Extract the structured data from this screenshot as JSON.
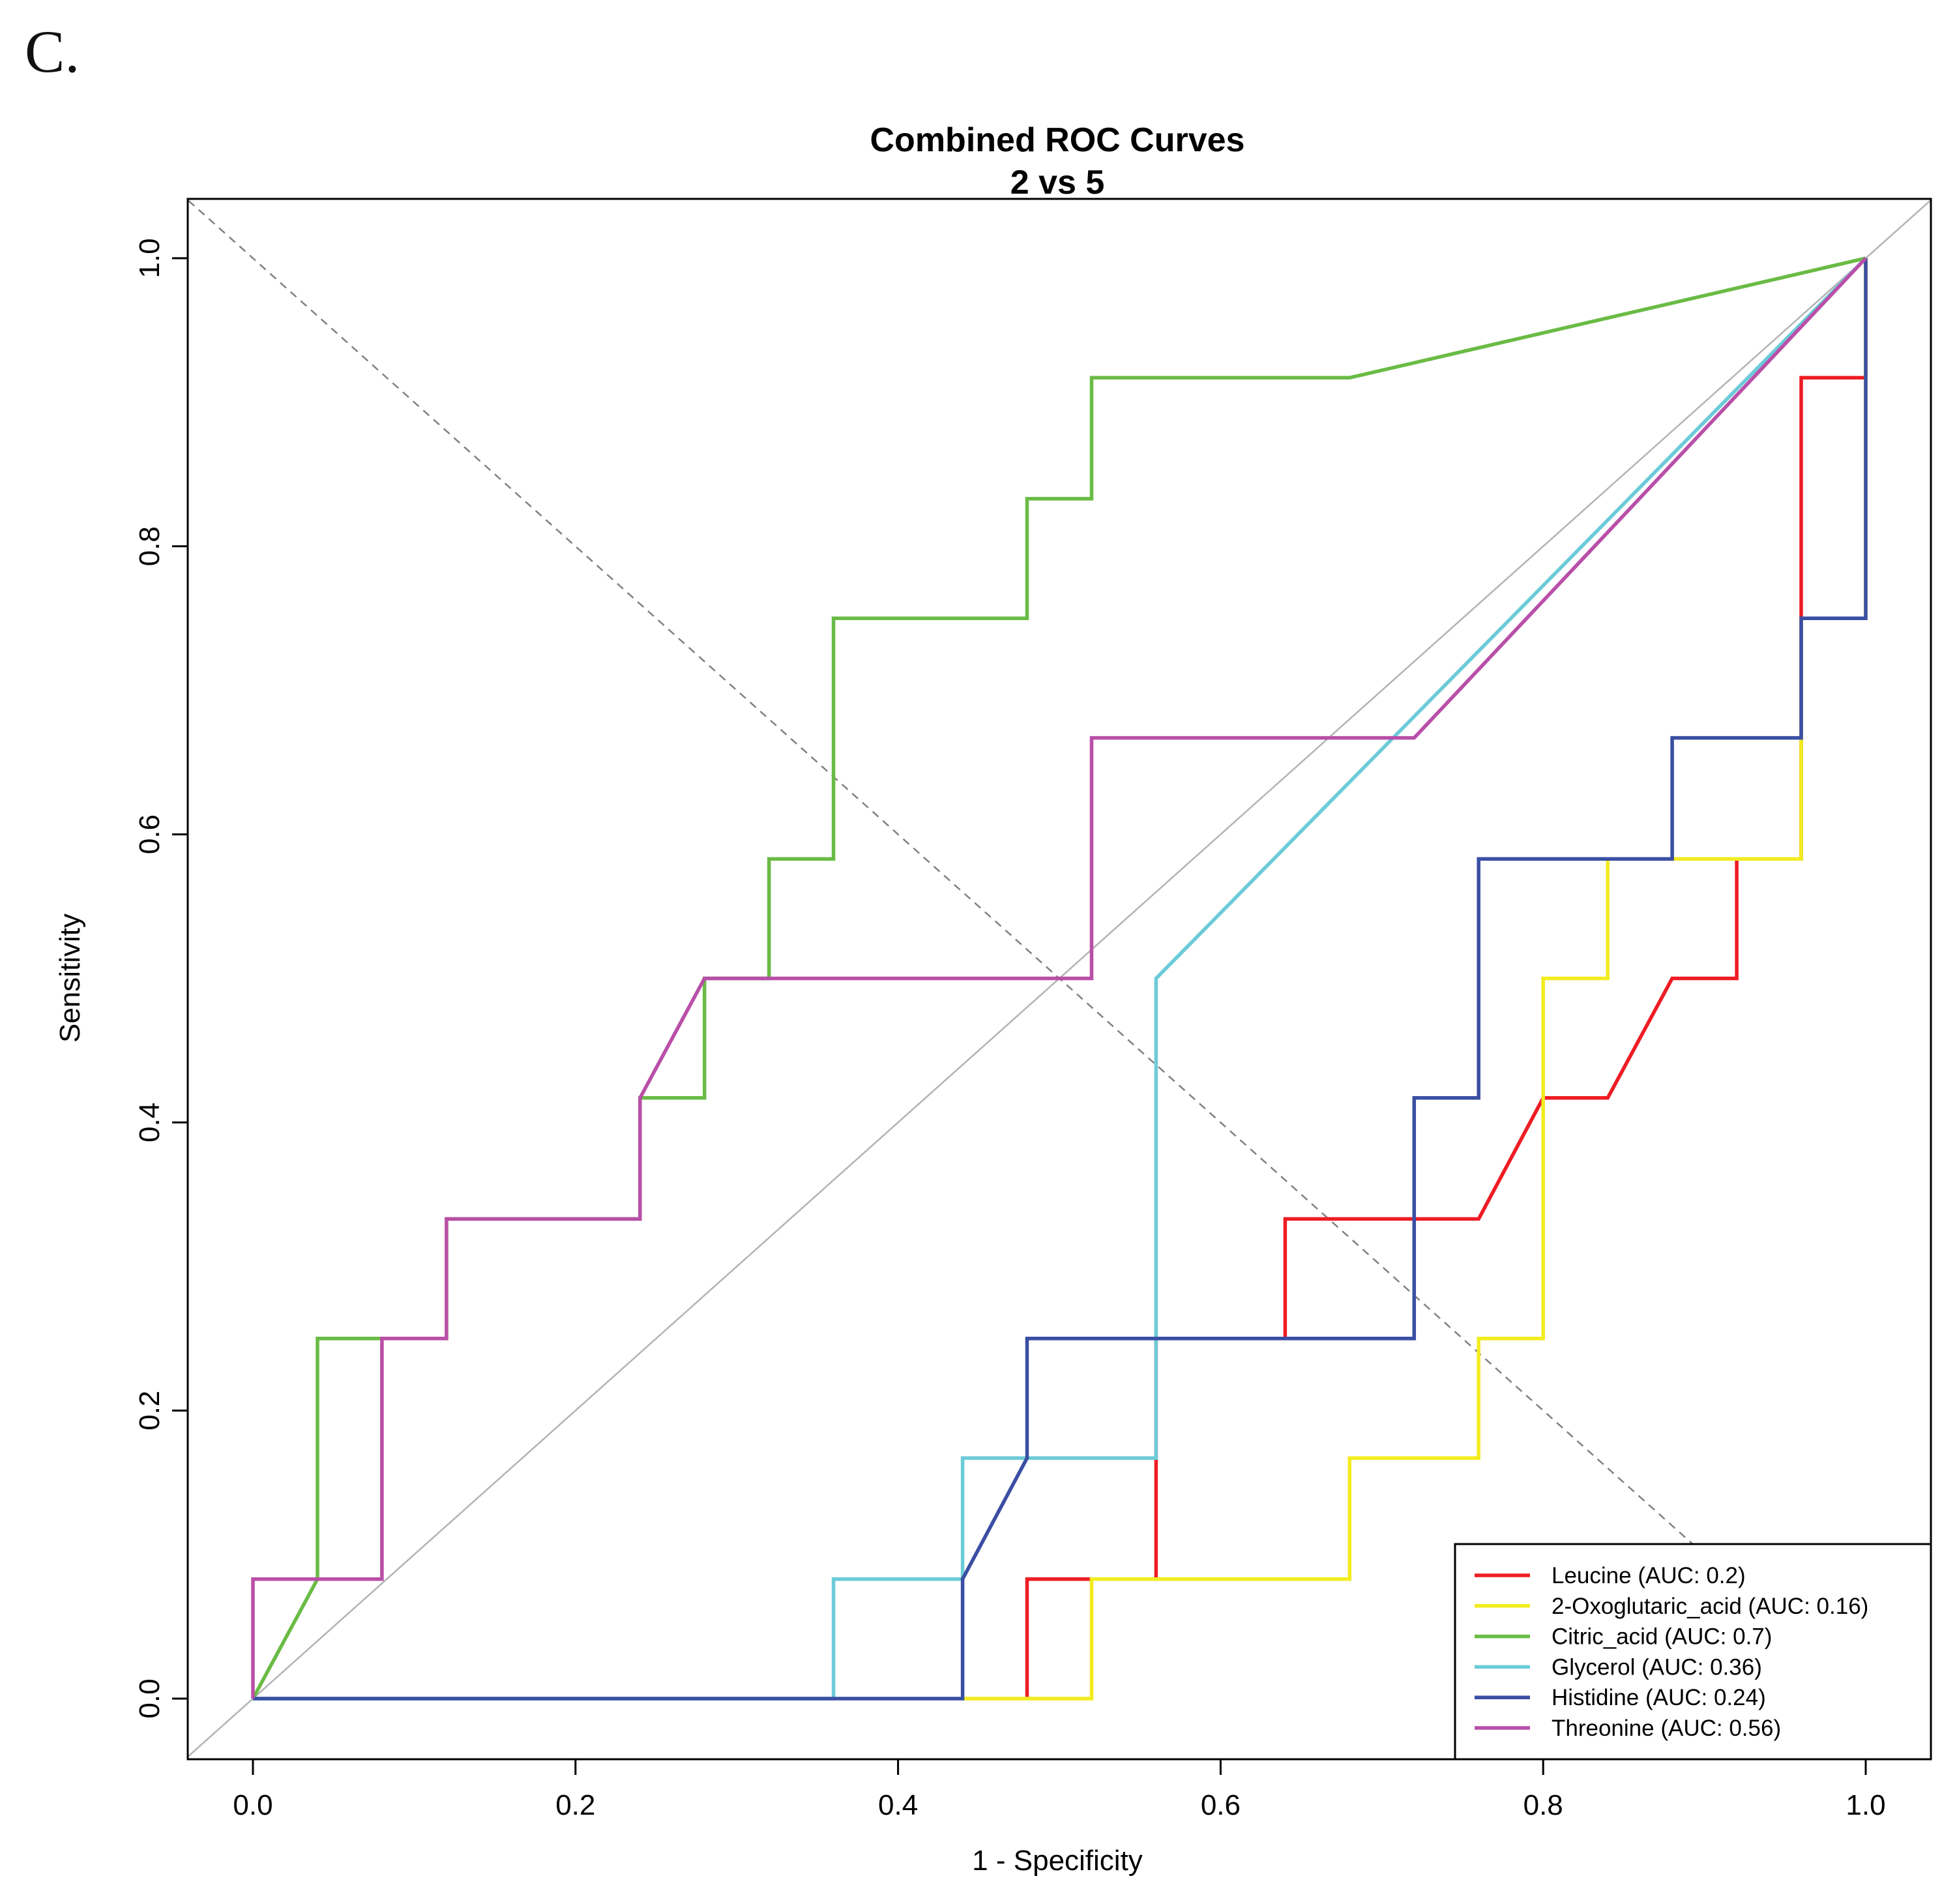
{
  "panel_label": "C.",
  "chart_data": {
    "type": "line",
    "title": "Combined ROC Curves",
    "subtitle": "2 vs 5",
    "xlabel": "1 - Specificity",
    "ylabel": "Sensitivity",
    "xlim": [
      -0.04,
      1.04
    ],
    "ylim": [
      -0.04,
      1.04
    ],
    "x_ticks": [
      0.0,
      0.2,
      0.4,
      0.6,
      0.8,
      1.0
    ],
    "x_tick_labels": [
      "0.0",
      "0.2",
      "0.4",
      "0.6",
      "0.8",
      "1.0"
    ],
    "y_ticks": [
      0.0,
      0.2,
      0.4,
      0.6,
      0.8,
      1.0
    ],
    "y_tick_labels": [
      "0.0",
      "0.2",
      "0.4",
      "0.6",
      "0.8",
      "1.0"
    ],
    "grid": false,
    "legend_position": "bottom-right",
    "reference_lines": [
      {
        "style": "solid",
        "color": "#b3b3b3",
        "from": [
          -0.04,
          -0.04
        ],
        "to": [
          1.04,
          1.04
        ]
      },
      {
        "style": "dashed",
        "color": "#808080",
        "from": [
          -0.04,
          1.04
        ],
        "to": [
          1.04,
          -0.04
        ]
      }
    ],
    "series": [
      {
        "name": "Leucine (AUC: 0.2)",
        "color": "#ee1c24",
        "points": [
          [
            0.48,
            0
          ],
          [
            0.48,
            0.083
          ],
          [
            0.56,
            0.083
          ],
          [
            0.56,
            0.167
          ],
          [
            0.56,
            0.25
          ],
          [
            0.64,
            0.25
          ],
          [
            0.64,
            0.333
          ],
          [
            0.76,
            0.333
          ],
          [
            0.8,
            0.417
          ],
          [
            0.84,
            0.417
          ],
          [
            0.88,
            0.5
          ],
          [
            0.92,
            0.5
          ],
          [
            0.92,
            0.583
          ],
          [
            0.96,
            0.583
          ],
          [
            0.96,
            0.75
          ],
          [
            0.96,
            0.917
          ],
          [
            1.0,
            0.917
          ],
          [
            1.0,
            1.0
          ]
        ]
      },
      {
        "name": "2-Oxoglutaric_acid (AUC: 0.16)",
        "color": "#f2ec1f",
        "points": [
          [
            0.44,
            0
          ],
          [
            0.52,
            0
          ],
          [
            0.52,
            0.083
          ],
          [
            0.68,
            0.083
          ],
          [
            0.68,
            0.167
          ],
          [
            0.76,
            0.167
          ],
          [
            0.76,
            0.25
          ],
          [
            0.8,
            0.25
          ],
          [
            0.8,
            0.417
          ],
          [
            0.8,
            0.5
          ],
          [
            0.84,
            0.5
          ],
          [
            0.84,
            0.583
          ],
          [
            0.88,
            0.583
          ],
          [
            0.96,
            0.583
          ],
          [
            0.96,
            0.667
          ],
          [
            0.96,
            0.75
          ],
          [
            1.0,
            0.75
          ],
          [
            1.0,
            1.0
          ]
        ]
      },
      {
        "name": "Citric_acid (AUC: 0.7)",
        "color": "#6abb45",
        "points": [
          [
            0,
            0
          ],
          [
            0.04,
            0.083
          ],
          [
            0.04,
            0.25
          ],
          [
            0.08,
            0.25
          ],
          [
            0.12,
            0.25
          ],
          [
            0.12,
            0.333
          ],
          [
            0.24,
            0.333
          ],
          [
            0.24,
            0.417
          ],
          [
            0.28,
            0.417
          ],
          [
            0.28,
            0.5
          ],
          [
            0.32,
            0.5
          ],
          [
            0.32,
            0.583
          ],
          [
            0.36,
            0.583
          ],
          [
            0.36,
            0.75
          ],
          [
            0.48,
            0.75
          ],
          [
            0.48,
            0.833
          ],
          [
            0.52,
            0.833
          ],
          [
            0.52,
            0.917
          ],
          [
            0.68,
            0.917
          ],
          [
            1.0,
            1.0
          ]
        ]
      },
      {
        "name": "Glycerol (AUC: 0.36)",
        "color": "#6ccbd8",
        "points": [
          [
            0,
            0
          ],
          [
            0.36,
            0
          ],
          [
            0.36,
            0.083
          ],
          [
            0.44,
            0.083
          ],
          [
            0.44,
            0.167
          ],
          [
            0.56,
            0.167
          ],
          [
            0.56,
            0.5
          ],
          [
            1.0,
            1.0
          ]
        ]
      },
      {
        "name": "Histidine (AUC: 0.24)",
        "color": "#3a4fa3",
        "points": [
          [
            0,
            0
          ],
          [
            0.44,
            0
          ],
          [
            0.44,
            0.083
          ],
          [
            0.48,
            0.167
          ],
          [
            0.48,
            0.25
          ],
          [
            0.72,
            0.25
          ],
          [
            0.72,
            0.417
          ],
          [
            0.76,
            0.417
          ],
          [
            0.76,
            0.583
          ],
          [
            0.88,
            0.583
          ],
          [
            0.88,
            0.667
          ],
          [
            0.96,
            0.667
          ],
          [
            0.96,
            0.75
          ],
          [
            1.0,
            0.75
          ],
          [
            1.0,
            1.0
          ]
        ]
      },
      {
        "name": "Threonine (AUC: 0.56)",
        "color": "#b94fa8",
        "points": [
          [
            0,
            0
          ],
          [
            0,
            0.083
          ],
          [
            0.08,
            0.083
          ],
          [
            0.08,
            0.25
          ],
          [
            0.12,
            0.25
          ],
          [
            0.12,
            0.333
          ],
          [
            0.24,
            0.333
          ],
          [
            0.24,
            0.417
          ],
          [
            0.28,
            0.5
          ],
          [
            0.52,
            0.5
          ],
          [
            0.52,
            0.667
          ],
          [
            0.72,
            0.667
          ],
          [
            1.0,
            1.0
          ]
        ]
      }
    ]
  }
}
